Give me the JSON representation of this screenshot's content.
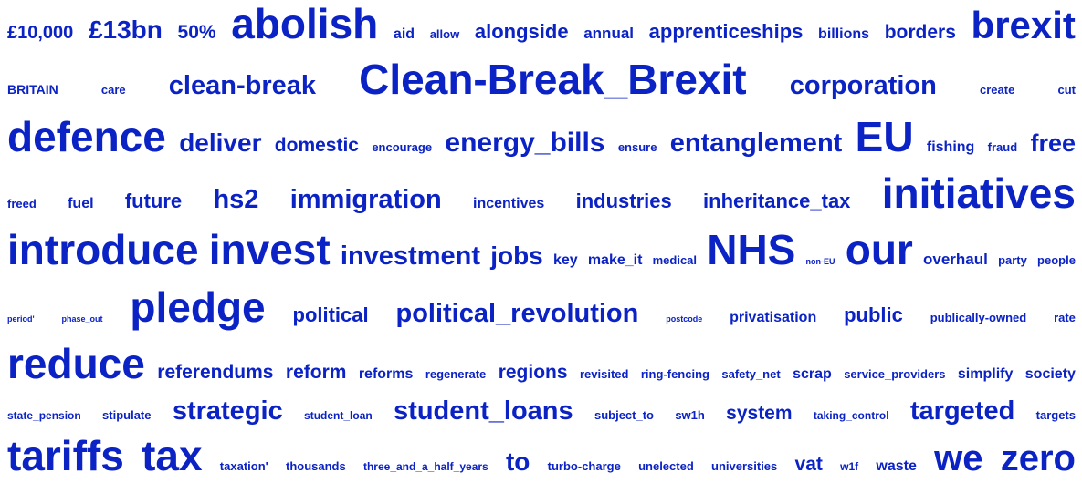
{
  "color": "#0b22c4",
  "rows": [
    [
      {
        "text": "£10,000",
        "size": 20
      },
      {
        "text": "£13bn",
        "size": 28
      },
      {
        "text": "50%",
        "size": 21
      },
      {
        "text": "abolish",
        "size": 46
      },
      {
        "text": "aid",
        "size": 16
      },
      {
        "text": "allow",
        "size": 13
      },
      {
        "text": "alongside",
        "size": 22
      },
      {
        "text": "annual",
        "size": 17
      },
      {
        "text": "apprenticeships",
        "size": 22
      },
      {
        "text": "billions",
        "size": 16
      },
      {
        "text": "borders",
        "size": 21
      },
      {
        "text": "brexit",
        "size": 42
      }
    ],
    [
      {
        "text": "BRITAIN",
        "size": 14
      },
      {
        "text": "care",
        "size": 13
      },
      {
        "text": "clean-break",
        "size": 29
      },
      {
        "text": "Clean-Break_Brexit",
        "size": 46
      },
      {
        "text": "corporation",
        "size": 29
      },
      {
        "text": "create",
        "size": 13
      },
      {
        "text": "cut",
        "size": 13
      }
    ],
    [
      {
        "text": "defence",
        "size": 46
      },
      {
        "text": "deliver",
        "size": 28
      },
      {
        "text": "domestic",
        "size": 21
      },
      {
        "text": "encourage",
        "size": 13
      },
      {
        "text": "energy_bills",
        "size": 30
      },
      {
        "text": "ensure",
        "size": 13
      },
      {
        "text": "entanglement",
        "size": 29
      },
      {
        "text": "EU",
        "size": 46
      },
      {
        "text": "fishing",
        "size": 16
      },
      {
        "text": "fraud",
        "size": 13
      },
      {
        "text": "free",
        "size": 27
      }
    ],
    [
      {
        "text": "freed",
        "size": 13
      },
      {
        "text": "fuel",
        "size": 16
      },
      {
        "text": "future",
        "size": 22
      },
      {
        "text": "hs2",
        "size": 29
      },
      {
        "text": "immigration",
        "size": 29
      },
      {
        "text": "incentives",
        "size": 16
      },
      {
        "text": "industries",
        "size": 22
      },
      {
        "text": "inheritance_tax",
        "size": 22
      },
      {
        "text": "initiatives",
        "size": 46
      }
    ],
    [
      {
        "text": "introduce",
        "size": 46
      },
      {
        "text": "invest",
        "size": 46
      },
      {
        "text": "investment",
        "size": 29
      },
      {
        "text": "jobs",
        "size": 28
      },
      {
        "text": "key",
        "size": 16
      },
      {
        "text": "make_it",
        "size": 16
      },
      {
        "text": "medical",
        "size": 13
      },
      {
        "text": "NHS",
        "size": 46
      },
      {
        "text": "non-EU",
        "size": 9
      },
      {
        "text": "our",
        "size": 46
      },
      {
        "text": "overhaul",
        "size": 17
      },
      {
        "text": "party",
        "size": 13
      },
      {
        "text": "people",
        "size": 13
      }
    ],
    [
      {
        "text": "period'",
        "size": 9
      },
      {
        "text": "phase_out",
        "size": 9
      },
      {
        "text": "pledge",
        "size": 46
      },
      {
        "text": "political",
        "size": 22
      },
      {
        "text": "political_revolution",
        "size": 29
      },
      {
        "text": "postcode",
        "size": 9
      },
      {
        "text": "privatisation",
        "size": 16
      },
      {
        "text": "public",
        "size": 22
      },
      {
        "text": "publically-owned",
        "size": 13
      },
      {
        "text": "rate",
        "size": 13
      }
    ],
    [
      {
        "text": "reduce",
        "size": 46
      },
      {
        "text": "referendums",
        "size": 21
      },
      {
        "text": "reform",
        "size": 21
      },
      {
        "text": "reforms",
        "size": 16
      },
      {
        "text": "regenerate",
        "size": 13
      },
      {
        "text": "regions",
        "size": 21
      },
      {
        "text": "revisited",
        "size": 13
      },
      {
        "text": "ring-fencing",
        "size": 13
      },
      {
        "text": "safety_net",
        "size": 13
      },
      {
        "text": "scrap",
        "size": 16
      },
      {
        "text": "service_providers",
        "size": 13
      },
      {
        "text": "simplify",
        "size": 16
      },
      {
        "text": "society",
        "size": 16
      }
    ],
    [
      {
        "text": "state_pension",
        "size": 12
      },
      {
        "text": "stipulate",
        "size": 13
      },
      {
        "text": "strategic",
        "size": 29
      },
      {
        "text": "student_loan",
        "size": 12
      },
      {
        "text": "student_loans",
        "size": 29
      },
      {
        "text": "subject_to",
        "size": 13
      },
      {
        "text": "sw1h",
        "size": 13
      },
      {
        "text": "system",
        "size": 21
      },
      {
        "text": "taking_control",
        "size": 12
      },
      {
        "text": "targeted",
        "size": 29
      },
      {
        "text": "targets",
        "size": 13
      }
    ],
    [
      {
        "text": "tariffs",
        "size": 46
      },
      {
        "text": "tax",
        "size": 46
      },
      {
        "text": "taxation'",
        "size": 13
      },
      {
        "text": "thousands",
        "size": 13
      },
      {
        "text": "three_and_a_half_years",
        "size": 12
      },
      {
        "text": "to",
        "size": 28
      },
      {
        "text": "turbo-charge",
        "size": 13
      },
      {
        "text": "unelected",
        "size": 13
      },
      {
        "text": "universities",
        "size": 13
      },
      {
        "text": "vat",
        "size": 21
      },
      {
        "text": "w1f",
        "size": 12
      },
      {
        "text": "waste",
        "size": 16
      },
      {
        "text": "we",
        "size": 40
      },
      {
        "text": "zero",
        "size": 40
      }
    ]
  ]
}
